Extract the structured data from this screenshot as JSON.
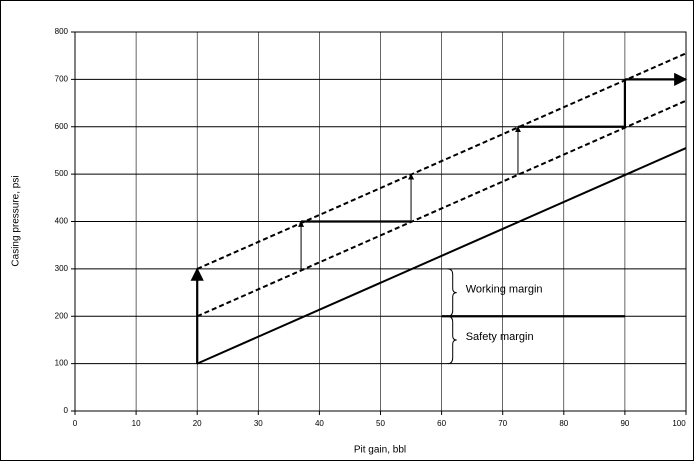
{
  "chart_data": {
    "type": "line",
    "xlabel": "Pit gain, bbl",
    "ylabel": "Casing pressure, psi",
    "xlim": [
      0,
      100
    ],
    "ylim": [
      0,
      800
    ],
    "xticks": [
      0,
      10,
      20,
      30,
      40,
      50,
      60,
      70,
      80,
      90,
      100
    ],
    "yticks": [
      0,
      100,
      200,
      300,
      400,
      500,
      600,
      700,
      800
    ],
    "grid": true,
    "series": [
      {
        "color": "#000000",
        "style": "solid",
        "x": [
          20,
          100
        ],
        "values": [
          100,
          555
        ]
      },
      {
        "color": "#000000",
        "style": "dashed",
        "x": [
          20,
          100
        ],
        "values": [
          200,
          655
        ]
      },
      {
        "color": "#000000",
        "style": "dashed",
        "x": [
          20,
          100
        ],
        "values": [
          300,
          755
        ]
      }
    ],
    "segments": [
      {
        "style": "thick",
        "arrow": true,
        "x": [
          20,
          20
        ],
        "values": [
          100,
          300
        ]
      },
      {
        "style": "thin",
        "arrow": true,
        "x": [
          37,
          37
        ],
        "values": [
          300,
          400
        ]
      },
      {
        "style": "thick",
        "arrow": false,
        "x": [
          37,
          55
        ],
        "values": [
          400,
          400
        ]
      },
      {
        "style": "thin",
        "arrow": true,
        "x": [
          55,
          55
        ],
        "values": [
          400,
          500
        ]
      },
      {
        "style": "thin",
        "arrow": true,
        "x": [
          72.5,
          72.5
        ],
        "values": [
          500,
          600
        ]
      },
      {
        "style": "thick",
        "arrow": false,
        "x": [
          72.5,
          90
        ],
        "values": [
          600,
          600
        ]
      },
      {
        "style": "thick",
        "arrow": false,
        "x": [
          90,
          90
        ],
        "values": [
          600,
          700
        ]
      },
      {
        "style": "thick",
        "arrow": true,
        "x": [
          90,
          100
        ],
        "values": [
          700,
          700
        ]
      },
      {
        "style": "thick",
        "arrow": false,
        "x": [
          60,
          90
        ],
        "values": [
          200,
          200
        ]
      }
    ],
    "annotations": [
      {
        "text": "Working margin",
        "x": 61,
        "range": [
          200,
          300
        ]
      },
      {
        "text": "Safety margin",
        "x": 61,
        "range": [
          100,
          200
        ]
      }
    ]
  }
}
